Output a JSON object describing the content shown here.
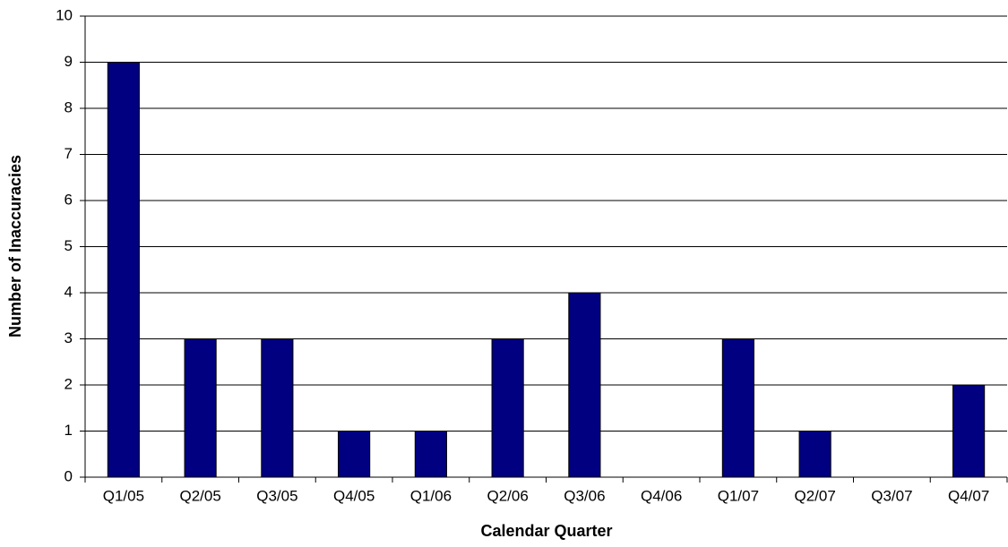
{
  "chart_data": {
    "type": "bar",
    "x_label": "Calendar Quarter",
    "y_label": "Number of Inaccuracies",
    "categories": [
      "Q1/05",
      "Q2/05",
      "Q3/05",
      "Q4/05",
      "Q1/06",
      "Q2/06",
      "Q3/06",
      "Q4/06",
      "Q1/07",
      "Q2/07",
      "Q3/07",
      "Q4/07"
    ],
    "values": [
      9,
      3,
      3,
      1,
      1,
      3,
      4,
      0,
      3,
      1,
      0,
      2
    ],
    "color": "#000080",
    "ylim": [
      0,
      10
    ],
    "yticks": [
      0,
      1,
      2,
      3,
      4,
      5,
      6,
      7,
      8,
      9,
      10
    ],
    "grid": true
  }
}
